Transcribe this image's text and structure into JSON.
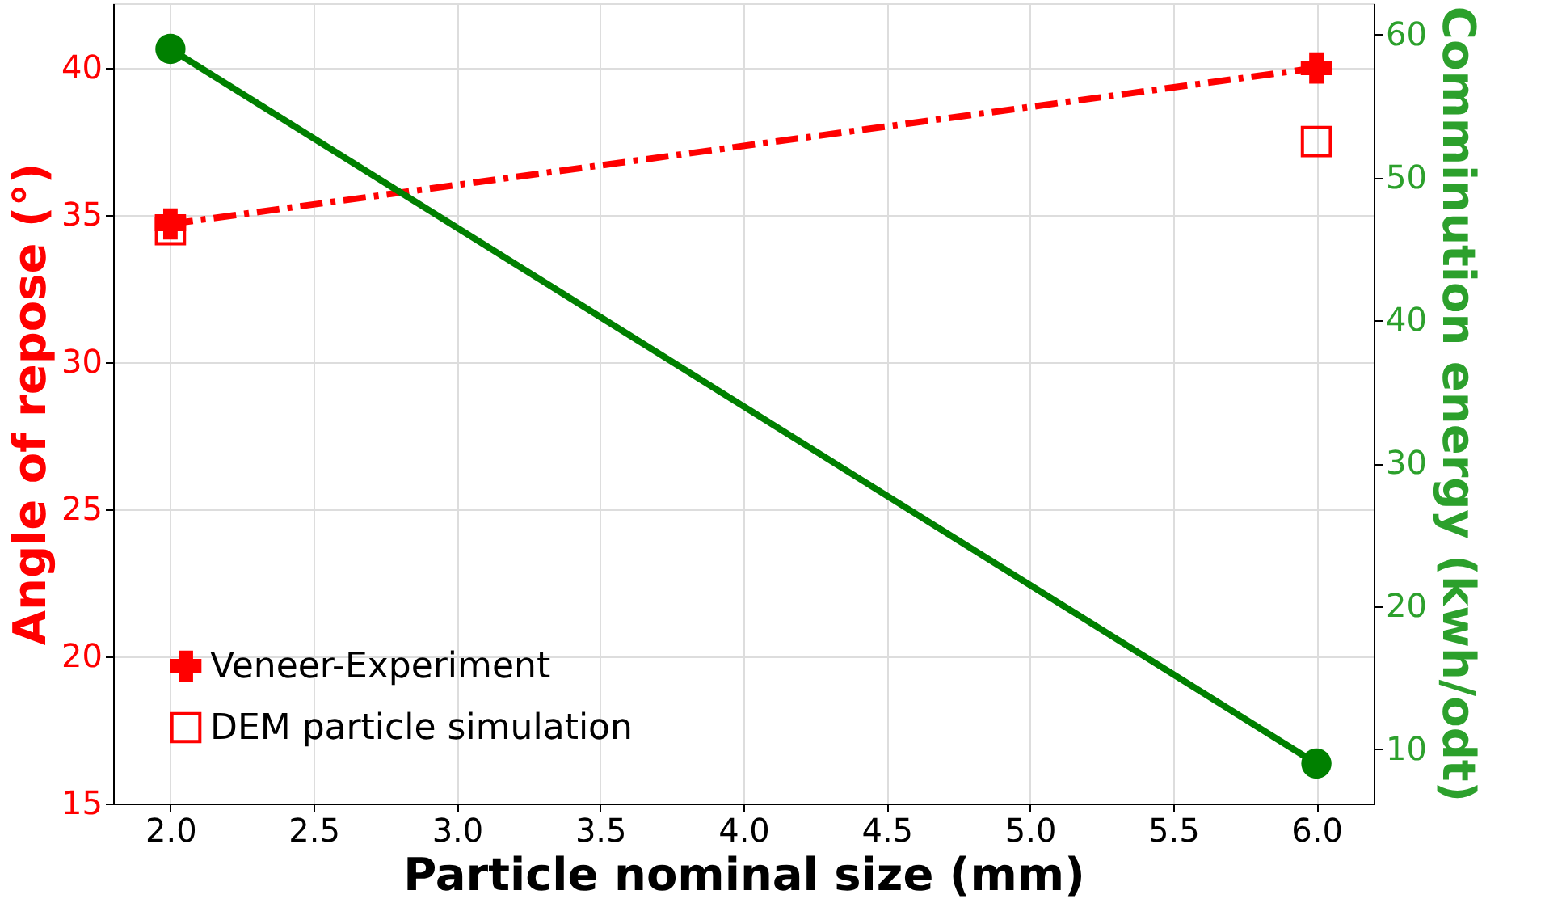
{
  "chart_data": {
    "type": "line",
    "xlabel": "Particle nominal size (mm)",
    "ylabel": "Angle of repose (°)",
    "y2label": "Comminution energy (kwh/odt)",
    "x": [
      2,
      6
    ],
    "series": [
      {
        "name": "Veneer-Experiment",
        "color": "#ff0000",
        "values": [
          34.7,
          40.0
        ],
        "marker": "cross",
        "line_style": "dashed"
      },
      {
        "name": "DEM particle simulation",
        "type": "scatter",
        "color": "#ff0000",
        "values": [
          34.5,
          37.5
        ],
        "marker": "square"
      },
      {
        "type": "line",
        "axis": "y2",
        "color": "#008000",
        "values": [
          59,
          9
        ],
        "marker": "circle",
        "line_style": "solid"
      }
    ],
    "xlim": [
      1.8,
      6.2
    ],
    "xticks": [
      {
        "value": 2,
        "label": "2.0"
      },
      {
        "value": 2.5,
        "label": "2.5"
      },
      {
        "value": 3,
        "label": "3.0"
      },
      {
        "value": 3.5,
        "label": "3.5"
      },
      {
        "value": 4,
        "label": "4.0"
      },
      {
        "value": 4.5,
        "label": "4.5"
      },
      {
        "value": 5,
        "label": "5.0"
      },
      {
        "value": 5.5,
        "label": "5.5"
      },
      {
        "value": 6,
        "label": "6.0"
      }
    ],
    "ylim": [
      15,
      42.2
    ],
    "yticks": [
      15,
      20,
      25,
      30,
      35,
      40
    ],
    "y2lim": [
      6.2,
      62.2
    ],
    "y2ticks": [
      10,
      20,
      30,
      40,
      50,
      60
    ],
    "grid": true,
    "legend": "bottom left"
  }
}
